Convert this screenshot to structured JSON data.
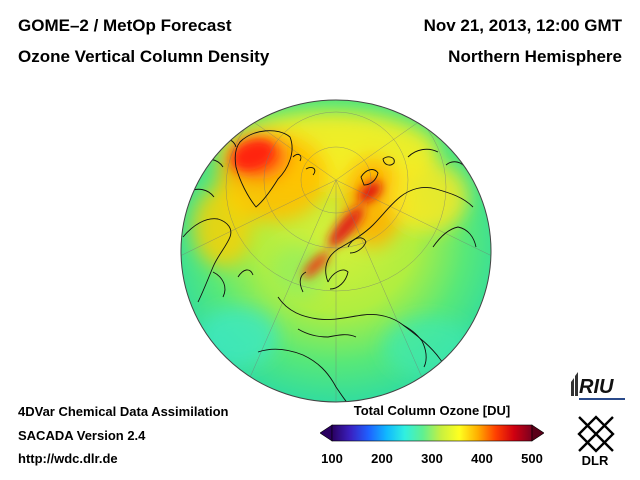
{
  "header": {
    "title_line1": "GOME–2 / MetOp Forecast",
    "title_line2": "Ozone Vertical Column Density",
    "date": "Nov 21, 2013, 12:00 GMT",
    "region": "Northern Hemisphere"
  },
  "footer": {
    "line1": "4DVar Chemical Data Assimilation",
    "line2": "SACADA Version 2.4",
    "line3": "http://wdc.dlr.de"
  },
  "colorbar": {
    "title": "Total Column Ozone [DU]",
    "min": 100,
    "max": 500,
    "ticks": [
      "100",
      "200",
      "300",
      "400",
      "500"
    ],
    "colors": [
      "#2a0060",
      "#3a20c0",
      "#1f60ff",
      "#10b8ff",
      "#30f0e0",
      "#60f090",
      "#c8f040",
      "#ffff20",
      "#ffb000",
      "#ff4000",
      "#d00010",
      "#7a0020"
    ]
  },
  "logos": {
    "riu": "RIU",
    "dlr": "DLR"
  }
}
